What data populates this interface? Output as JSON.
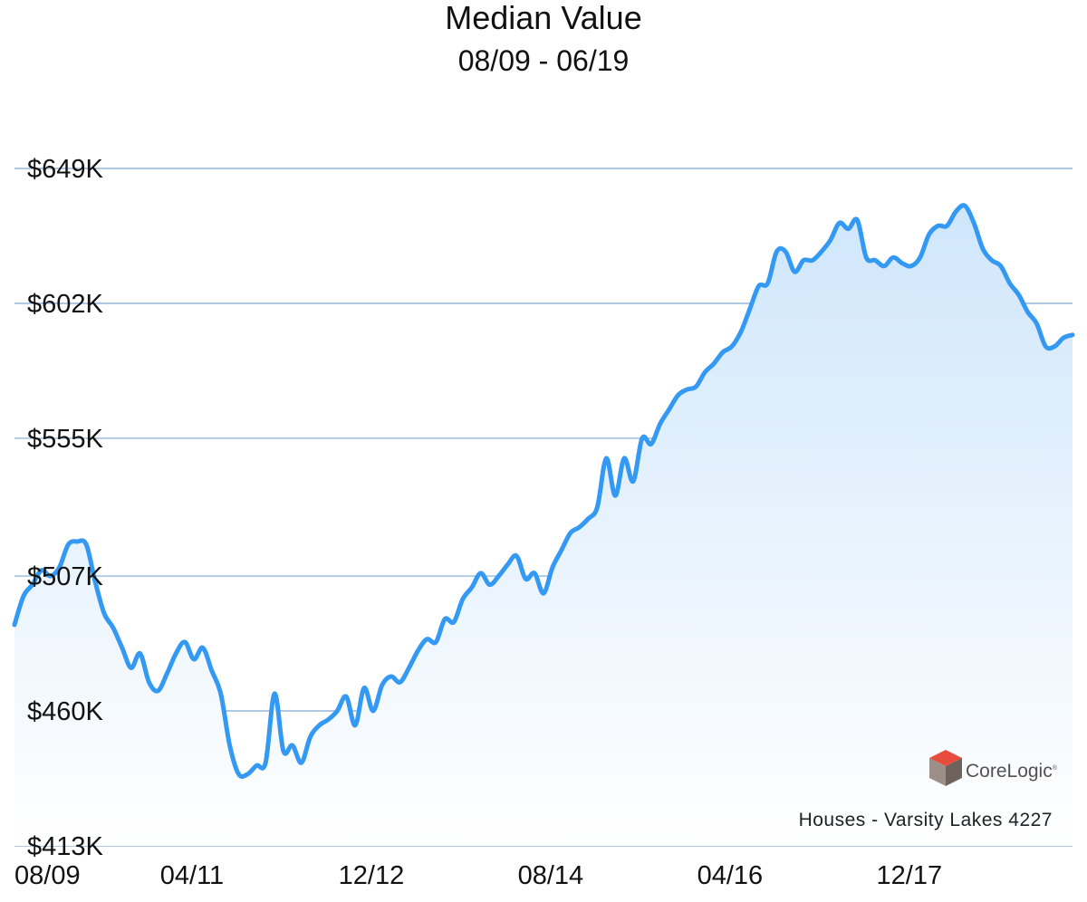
{
  "chart_data": {
    "type": "area",
    "title": "Median Value",
    "subtitle": "08/09 - 06/19",
    "y_ticks": [
      "$649K",
      "$602K",
      "$555K",
      "$507K",
      "$460K",
      "$413K"
    ],
    "y_tick_values": [
      649,
      602,
      555,
      507,
      460,
      413
    ],
    "ylim": [
      413,
      649
    ],
    "y_unit": "K",
    "x_ticks": [
      "08/09",
      "04/11",
      "12/12",
      "08/14",
      "04/16",
      "12/17"
    ],
    "x_start_month": 0,
    "x_end_month": 118,
    "x_tick_months": [
      0,
      20,
      40,
      60,
      80,
      100
    ],
    "grid": "horizontal",
    "series": [
      {
        "color": "#3399f3",
        "months": [
          0,
          1,
          2,
          3,
          4,
          5,
          6,
          7,
          8,
          9,
          10,
          11,
          12,
          13,
          14,
          15,
          16,
          17,
          18,
          19,
          20,
          21,
          22,
          23,
          24,
          25,
          26,
          27,
          28,
          29,
          30,
          31,
          32,
          33,
          34,
          35,
          36,
          37,
          38,
          39,
          40,
          41,
          42,
          43,
          44,
          45,
          46,
          47,
          48,
          49,
          50,
          51,
          52,
          53,
          54,
          55,
          56,
          57,
          58,
          59,
          60,
          61,
          62,
          63,
          64,
          65,
          66,
          67,
          68,
          69,
          70,
          71,
          72,
          73,
          74,
          75,
          76,
          77,
          78,
          79,
          80,
          81,
          82,
          83,
          84,
          85,
          86,
          87,
          88,
          89,
          90,
          91,
          92,
          93,
          94,
          95,
          96,
          97,
          98,
          99,
          100,
          101,
          102,
          103,
          104,
          105,
          106,
          107,
          108,
          109,
          110,
          111,
          112,
          113,
          114,
          115,
          116,
          117,
          118
        ],
        "values": [
          490,
          500,
          504,
          509,
          507,
          510,
          518,
          519,
          518,
          505,
          494,
          489,
          482,
          475,
          480,
          470,
          467,
          473,
          480,
          484,
          478,
          482,
          474,
          466,
          448,
          438,
          438,
          441,
          442,
          466,
          446,
          448,
          442,
          451,
          455,
          457,
          460,
          465,
          455,
          468,
          460,
          469,
          472,
          470,
          475,
          481,
          485,
          484,
          492,
          491,
          499,
          503,
          508,
          504,
          507,
          511,
          514,
          506,
          508,
          501,
          510,
          516,
          522,
          524,
          527,
          531,
          548,
          535,
          548,
          540,
          555,
          553,
          560,
          565,
          570,
          572,
          573,
          578,
          581,
          585,
          587,
          592,
          600,
          608,
          609,
          620,
          620,
          613,
          617,
          617,
          620,
          624,
          630,
          628,
          631,
          618,
          617,
          615,
          618,
          616,
          615,
          618,
          626,
          629,
          629,
          634,
          636,
          630,
          621,
          617,
          615,
          609,
          605,
          599,
          595,
          587,
          587,
          590,
          591
        ]
      }
    ],
    "logo": {
      "name": "CoreLogic",
      "mark": "cube-logo-icon"
    },
    "caption": "Houses - Varsity Lakes 4227"
  }
}
